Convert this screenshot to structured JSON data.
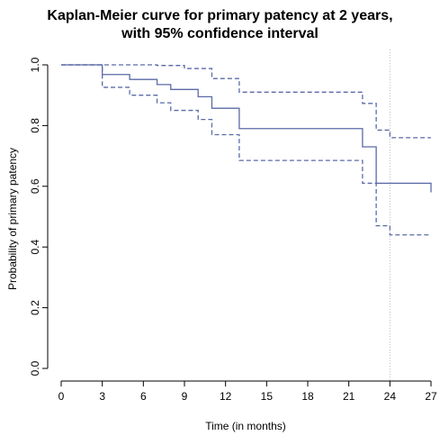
{
  "chart_data": {
    "type": "line",
    "title_lines": [
      "Kaplan-Meier curve for primary patency at 2 years,",
      "with 95% confidence interval"
    ],
    "xlabel": "Time (in months)",
    "ylabel": "Probability of primary patency",
    "xlim": [
      0,
      27
    ],
    "ylim": [
      0,
      1
    ],
    "x_ticks": [
      0,
      3,
      6,
      9,
      12,
      15,
      18,
      21,
      24,
      27
    ],
    "y_ticks": [
      0.0,
      0.2,
      0.4,
      0.6,
      0.8,
      1.0
    ],
    "y_tick_labels": [
      "0.0",
      "0.2",
      "0.4",
      "0.6",
      "0.8",
      "1.0"
    ],
    "reference_line_x": 24,
    "grid": false,
    "legend": "none",
    "series": [
      {
        "role": "survival estimate",
        "style": "solid",
        "color": "#5b6aa8",
        "x": [
          0,
          3,
          5,
          7,
          8,
          10,
          11,
          13,
          22,
          23,
          27
        ],
        "y": [
          1.0,
          0.968,
          0.952,
          0.935,
          0.919,
          0.895,
          0.857,
          0.79,
          0.73,
          0.61,
          0.58
        ]
      },
      {
        "role": "upper 95% confidence limit",
        "style": "dashed",
        "color": "#5b6aa8",
        "x": [
          0,
          7,
          9,
          11,
          13,
          22,
          23,
          24,
          27
        ],
        "y": [
          1.0,
          0.998,
          0.988,
          0.955,
          0.91,
          0.873,
          0.785,
          0.76,
          0.76
        ]
      },
      {
        "role": "lower 95% confidence limit",
        "style": "dashed",
        "color": "#5b6aa8",
        "x": [
          0,
          3,
          5,
          7,
          8,
          10,
          11,
          13,
          22,
          23,
          24,
          27
        ],
        "y": [
          1.0,
          0.926,
          0.9,
          0.875,
          0.85,
          0.82,
          0.77,
          0.685,
          0.61,
          0.47,
          0.44,
          0.44
        ]
      }
    ]
  }
}
